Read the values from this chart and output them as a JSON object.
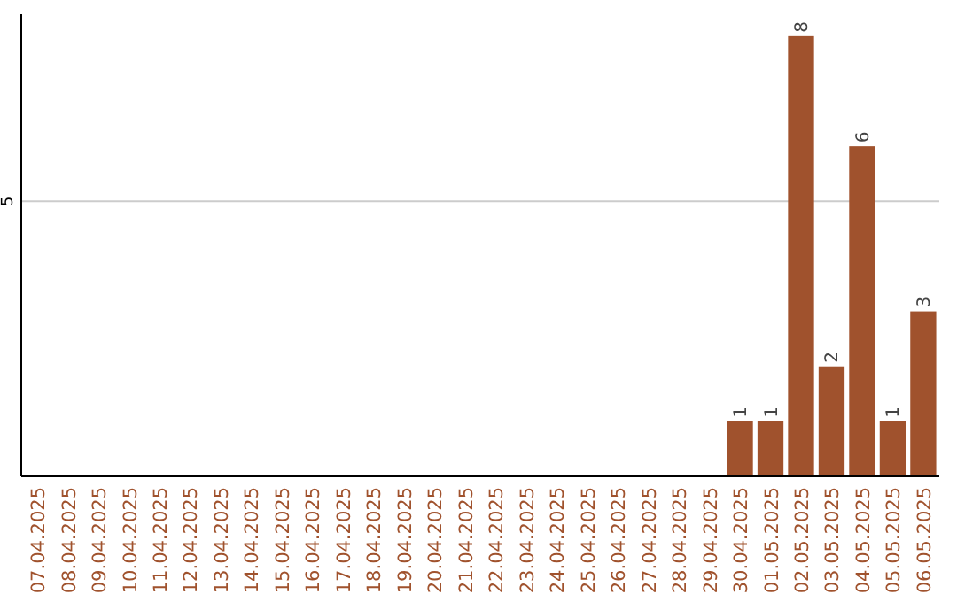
{
  "chart_data": {
    "type": "bar",
    "categories": [
      "07.04.2025",
      "08.04.2025",
      "09.04.2025",
      "10.04.2025",
      "11.04.2025",
      "12.04.2025",
      "13.04.2025",
      "14.04.2025",
      "15.04.2025",
      "16.04.2025",
      "17.04.2025",
      "18.04.2025",
      "19.04.2025",
      "20.04.2025",
      "21.04.2025",
      "22.04.2025",
      "23.04.2025",
      "24.04.2025",
      "25.04.2025",
      "26.04.2025",
      "27.04.2025",
      "28.04.2025",
      "29.04.2025",
      "30.04.2025",
      "01.05.2025",
      "02.05.2025",
      "03.05.2025",
      "04.05.2025",
      "05.05.2025",
      "06.05.2025"
    ],
    "values": [
      null,
      null,
      null,
      null,
      null,
      null,
      null,
      null,
      null,
      null,
      null,
      null,
      null,
      null,
      null,
      null,
      null,
      null,
      null,
      null,
      null,
      null,
      null,
      1,
      1,
      8,
      2,
      6,
      1,
      3
    ],
    "data_labels": true,
    "color": "#a0522d",
    "ylim": [
      0,
      8.4
    ],
    "yticks": [
      5
    ],
    "grid": "y"
  }
}
